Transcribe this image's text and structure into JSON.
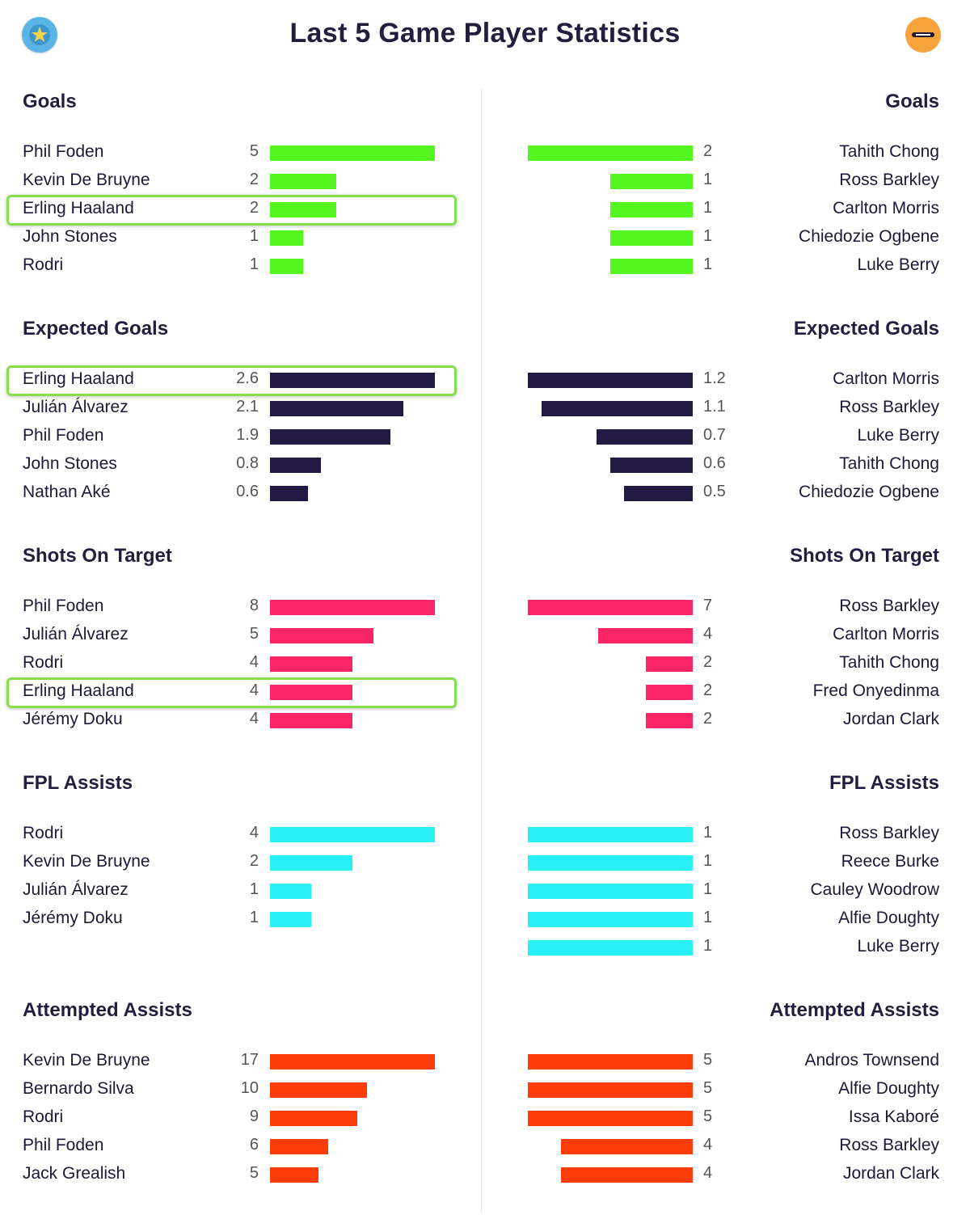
{
  "title": "Last 5 Game Player Statistics",
  "header": {
    "left_badge_icon": "star-badge-icon",
    "right_badge_icon": "luton-crest-icon"
  },
  "chart_data": [
    {
      "type": "bar",
      "metric": "Goals",
      "color": "#55f51f",
      "left": {
        "title": "Goals",
        "rows": [
          {
            "name": "Phil Foden",
            "value": 5
          },
          {
            "name": "Kevin De Bruyne",
            "value": 2
          },
          {
            "name": "Erling Haaland",
            "value": 2,
            "highlight": true
          },
          {
            "name": "John Stones",
            "value": 1
          },
          {
            "name": "Rodri",
            "value": 1
          }
        ]
      },
      "right": {
        "title": "Goals",
        "rows": [
          {
            "name": "Tahith Chong",
            "value": 2
          },
          {
            "name": "Ross Barkley",
            "value": 1
          },
          {
            "name": "Carlton Morris",
            "value": 1
          },
          {
            "name": "Chiedozie Ogbene",
            "value": 1
          },
          {
            "name": "Luke Berry",
            "value": 1
          }
        ]
      }
    },
    {
      "type": "bar",
      "metric": "Expected Goals",
      "color": "#221a43",
      "left": {
        "title": "Expected Goals",
        "rows": [
          {
            "name": "Erling Haaland",
            "value": "2.6",
            "highlight": true
          },
          {
            "name": "Julián Álvarez",
            "value": "2.1"
          },
          {
            "name": "Phil Foden",
            "value": "1.9"
          },
          {
            "name": "John Stones",
            "value": "0.8"
          },
          {
            "name": "Nathan Aké",
            "value": "0.6"
          }
        ]
      },
      "right": {
        "title": "Expected Goals",
        "rows": [
          {
            "name": "Carlton Morris",
            "value": "1.2"
          },
          {
            "name": "Ross Barkley",
            "value": "1.1"
          },
          {
            "name": "Luke Berry",
            "value": "0.7"
          },
          {
            "name": "Tahith Chong",
            "value": "0.6"
          },
          {
            "name": "Chiedozie Ogbene",
            "value": "0.5"
          }
        ]
      }
    },
    {
      "type": "bar",
      "metric": "Shots On Target",
      "color": "#fb2465",
      "left": {
        "title": "Shots On Target",
        "rows": [
          {
            "name": "Phil Foden",
            "value": 8
          },
          {
            "name": "Julián Álvarez",
            "value": 5
          },
          {
            "name": "Rodri",
            "value": 4
          },
          {
            "name": "Erling Haaland",
            "value": 4,
            "highlight": true
          },
          {
            "name": "Jérémy Doku",
            "value": 4
          }
        ]
      },
      "right": {
        "title": "Shots On Target",
        "rows": [
          {
            "name": "Ross Barkley",
            "value": 7
          },
          {
            "name": "Carlton Morris",
            "value": 4
          },
          {
            "name": "Tahith Chong",
            "value": 2
          },
          {
            "name": "Fred Onyedinma",
            "value": 2
          },
          {
            "name": "Jordan Clark",
            "value": 2
          }
        ]
      }
    },
    {
      "type": "bar",
      "metric": "FPL Assists",
      "color": "#29f0f7",
      "left": {
        "title": "FPL Assists",
        "rows": [
          {
            "name": "Rodri",
            "value": 4
          },
          {
            "name": "Kevin De Bruyne",
            "value": 2
          },
          {
            "name": "Julián Álvarez",
            "value": 1
          },
          {
            "name": "Jérémy Doku",
            "value": 1
          }
        ]
      },
      "right": {
        "title": "FPL Assists",
        "rows": [
          {
            "name": "Ross Barkley",
            "value": 1
          },
          {
            "name": "Reece Burke",
            "value": 1
          },
          {
            "name": "Cauley Woodrow",
            "value": 1
          },
          {
            "name": "Alfie Doughty",
            "value": 1
          },
          {
            "name": "Luke Berry",
            "value": 1
          }
        ]
      }
    },
    {
      "type": "bar",
      "metric": "Attempted Assists",
      "color": "#fd3d07",
      "left": {
        "title": "Attempted Assists",
        "rows": [
          {
            "name": "Kevin De Bruyne",
            "value": 17
          },
          {
            "name": "Bernardo Silva",
            "value": 10
          },
          {
            "name": "Rodri",
            "value": 9
          },
          {
            "name": "Phil Foden",
            "value": 6
          },
          {
            "name": "Jack Grealish",
            "value": 5
          }
        ]
      },
      "right": {
        "title": "Attempted Assists",
        "rows": [
          {
            "name": "Andros Townsend",
            "value": 5
          },
          {
            "name": "Alfie Doughty",
            "value": 5
          },
          {
            "name": "Issa Kaboré",
            "value": 5
          },
          {
            "name": "Ross Barkley",
            "value": 4
          },
          {
            "name": "Jordan Clark",
            "value": 4
          }
        ]
      }
    }
  ]
}
